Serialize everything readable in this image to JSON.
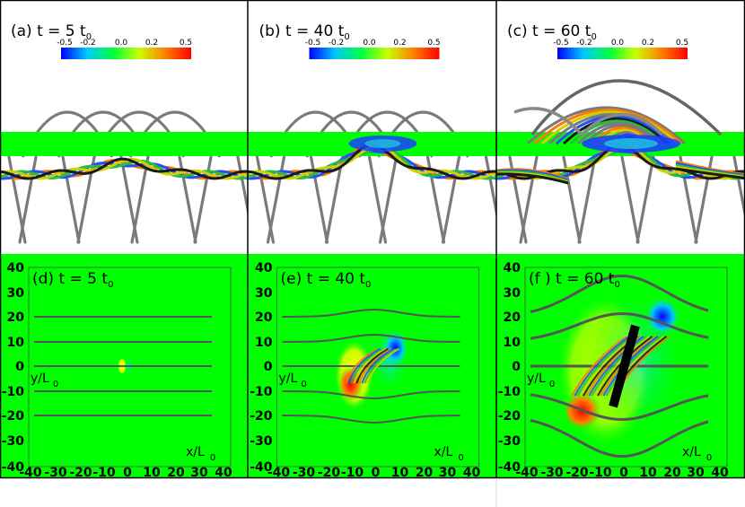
{
  "panels": [
    {
      "id": "a",
      "label": "(a)  t = 5   t",
      "sub": "0"
    },
    {
      "id": "b",
      "label": "(b)  t = 40 t",
      "sub": "0"
    },
    {
      "id": "c",
      "label": "(c)  t = 60 t",
      "sub": "0"
    },
    {
      "id": "d",
      "label": "(d)  t = 5   t",
      "sub": "0"
    },
    {
      "id": "e",
      "label": "(e)  t = 40 t",
      "sub": "0"
    },
    {
      "id": "f",
      "label": "(f )  t = 60 t",
      "sub": "0"
    }
  ],
  "colorbar": {
    "ticks": [
      "-0.5",
      "-0.2",
      "0.0",
      "0.2",
      "0.5"
    ],
    "colormap": [
      "#0000ff",
      "#00c8ff",
      "#00ff40",
      "#c8ff00",
      "#ff8000",
      "#ff0000"
    ]
  },
  "axes": {
    "y_ticks": [
      "40",
      "30",
      "20",
      "10",
      "0",
      "-10",
      "-20",
      "-30",
      "-40"
    ],
    "x_ticks": [
      "-40",
      "-30",
      "-20",
      "-10",
      "0",
      "10",
      "20",
      "30",
      "40"
    ],
    "ylabel": "y/L",
    "xlabel": "x/L",
    "label_sub": "0"
  },
  "colors": {
    "plane": "#00ff00",
    "field_line": "#7a7a7a",
    "background": "#ffffff"
  }
}
